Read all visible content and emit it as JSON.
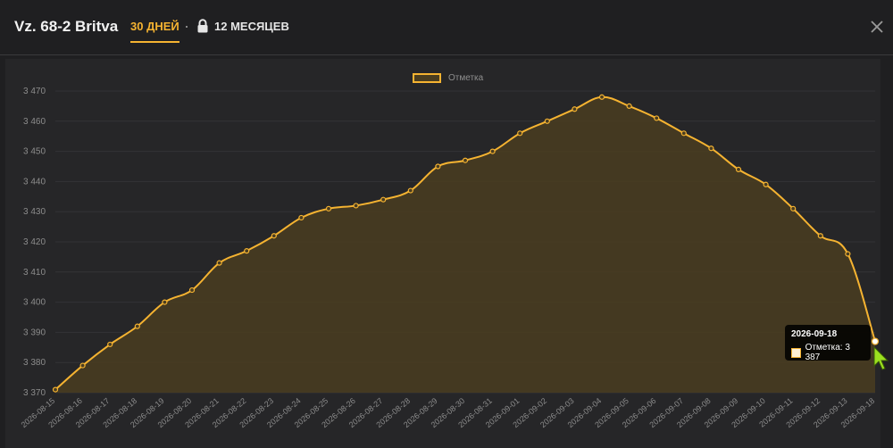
{
  "header": {
    "title": "Vz. 68-2 Britva",
    "tab_30": "30 ДНЕЙ",
    "tab_12": "12 МЕСЯЦЕВ"
  },
  "colors": {
    "accent": "#f5b331",
    "fill": "#4a3d20",
    "background": "#262628"
  },
  "chart_data": {
    "type": "area",
    "legend": "Отметка",
    "legend_position": "top-center",
    "grid": true,
    "x": [
      "2026-08-15",
      "2026-08-16",
      "2026-08-17",
      "2026-08-18",
      "2026-08-19",
      "2026-08-20",
      "2026-08-21",
      "2026-08-22",
      "2026-08-23",
      "2026-08-24",
      "2026-08-25",
      "2026-08-26",
      "2026-08-27",
      "2026-08-28",
      "2026-08-29",
      "2026-08-30",
      "2026-08-31",
      "2026-09-01",
      "2026-09-02",
      "2026-09-03",
      "2026-09-04",
      "2026-09-05",
      "2026-09-06",
      "2026-09-07",
      "2026-09-08",
      "2026-09-09",
      "2026-09-10",
      "2026-09-11",
      "2026-09-12",
      "2026-09-13",
      "2026-09-18"
    ],
    "series": [
      {
        "name": "Отметка",
        "values": [
          3371,
          3379,
          3386,
          3392,
          3400,
          3404,
          3413,
          3417,
          3422,
          3428,
          3431,
          3432,
          3434,
          3437,
          3445,
          3447,
          3450,
          3456,
          3460,
          3464,
          3468,
          3465,
          3461,
          3456,
          3451,
          3444,
          3439,
          3431,
          3422,
          3416,
          3387
        ]
      }
    ],
    "y_ticks": [
      "3 370",
      "3 380",
      "3 390",
      "3 400",
      "3 410",
      "3 420",
      "3 430",
      "3 440",
      "3 450",
      "3 460",
      "3 470"
    ],
    "ylim": [
      3370,
      3472
    ],
    "xlabel": "",
    "ylabel": "",
    "tooltip": {
      "date": "2026-09-18",
      "text": "Отметка: 3 387"
    }
  }
}
